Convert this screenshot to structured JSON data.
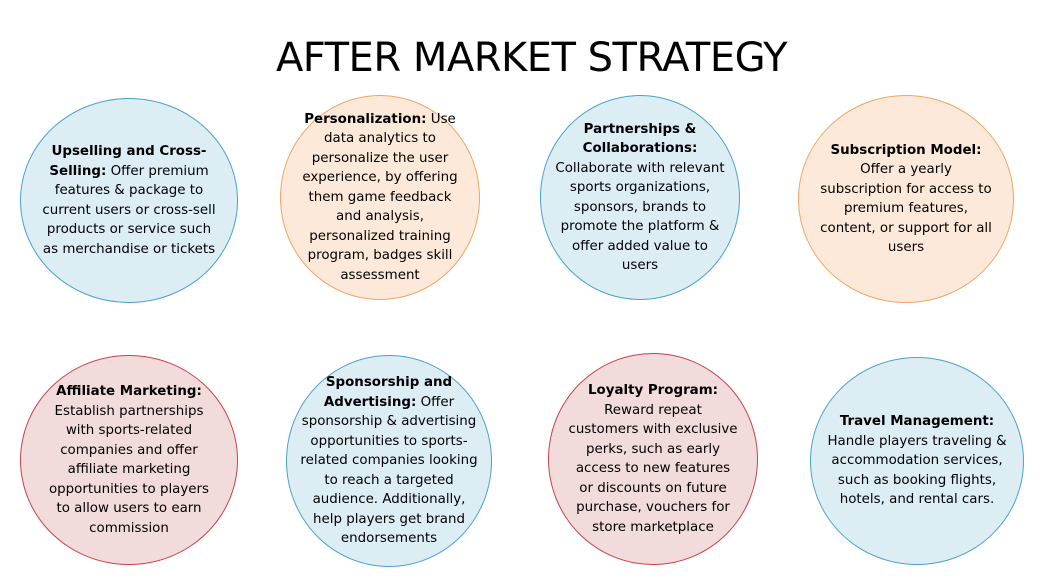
{
  "title": "AFTER MARKET STRATEGY",
  "colors": {
    "blue_fill": "#dcedf4",
    "blue_border": "#4ba3c7",
    "orange_fill": "#fde9d9",
    "orange_border": "#f0a562",
    "red_fill": "#f2dcdb",
    "red_border": "#c9424a"
  },
  "strategies": [
    {
      "heading": "Upselling and Cross-Selling:",
      "description": "Offer premium features & package to current users or cross-sell products or service such as merchandise or tickets",
      "color": "blue"
    },
    {
      "heading": "Personalization:",
      "description": "Use data analytics to personalize the user experience, by offering them game feedback and analysis, personalized training program, badges skill assessment",
      "color": "orange"
    },
    {
      "heading": "Partnerships & Collaborations:",
      "description": "Collaborate with relevant sports organizations, sponsors, brands to promote the platform & offer added value to users",
      "color": "blue"
    },
    {
      "heading": "Subscription Model:",
      "description": "Offer a yearly subscription for access to premium features, content, or support for all users",
      "color": "orange"
    },
    {
      "heading": "Affiliate Marketing:",
      "description": "Establish partnerships with sports-related companies and offer affiliate marketing opportunities to players to allow users to earn commission",
      "color": "red"
    },
    {
      "heading": "Sponsorship and Advertising:",
      "description": "Offer sponsorship & advertising opportunities to sports-related companies looking to reach a targeted audience. Additionally, help players get brand endorsements",
      "color": "blue"
    },
    {
      "heading": "Loyalty Program:",
      "description": "Reward repeat customers with exclusive perks, such as early access to new features or discounts on future purchase, vouchers for store marketplace",
      "color": "red"
    },
    {
      "heading": "Travel Management:",
      "description": "Handle players traveling & accommodation services, such as booking flights, hotels, and rental cars.",
      "color": "blue"
    }
  ]
}
